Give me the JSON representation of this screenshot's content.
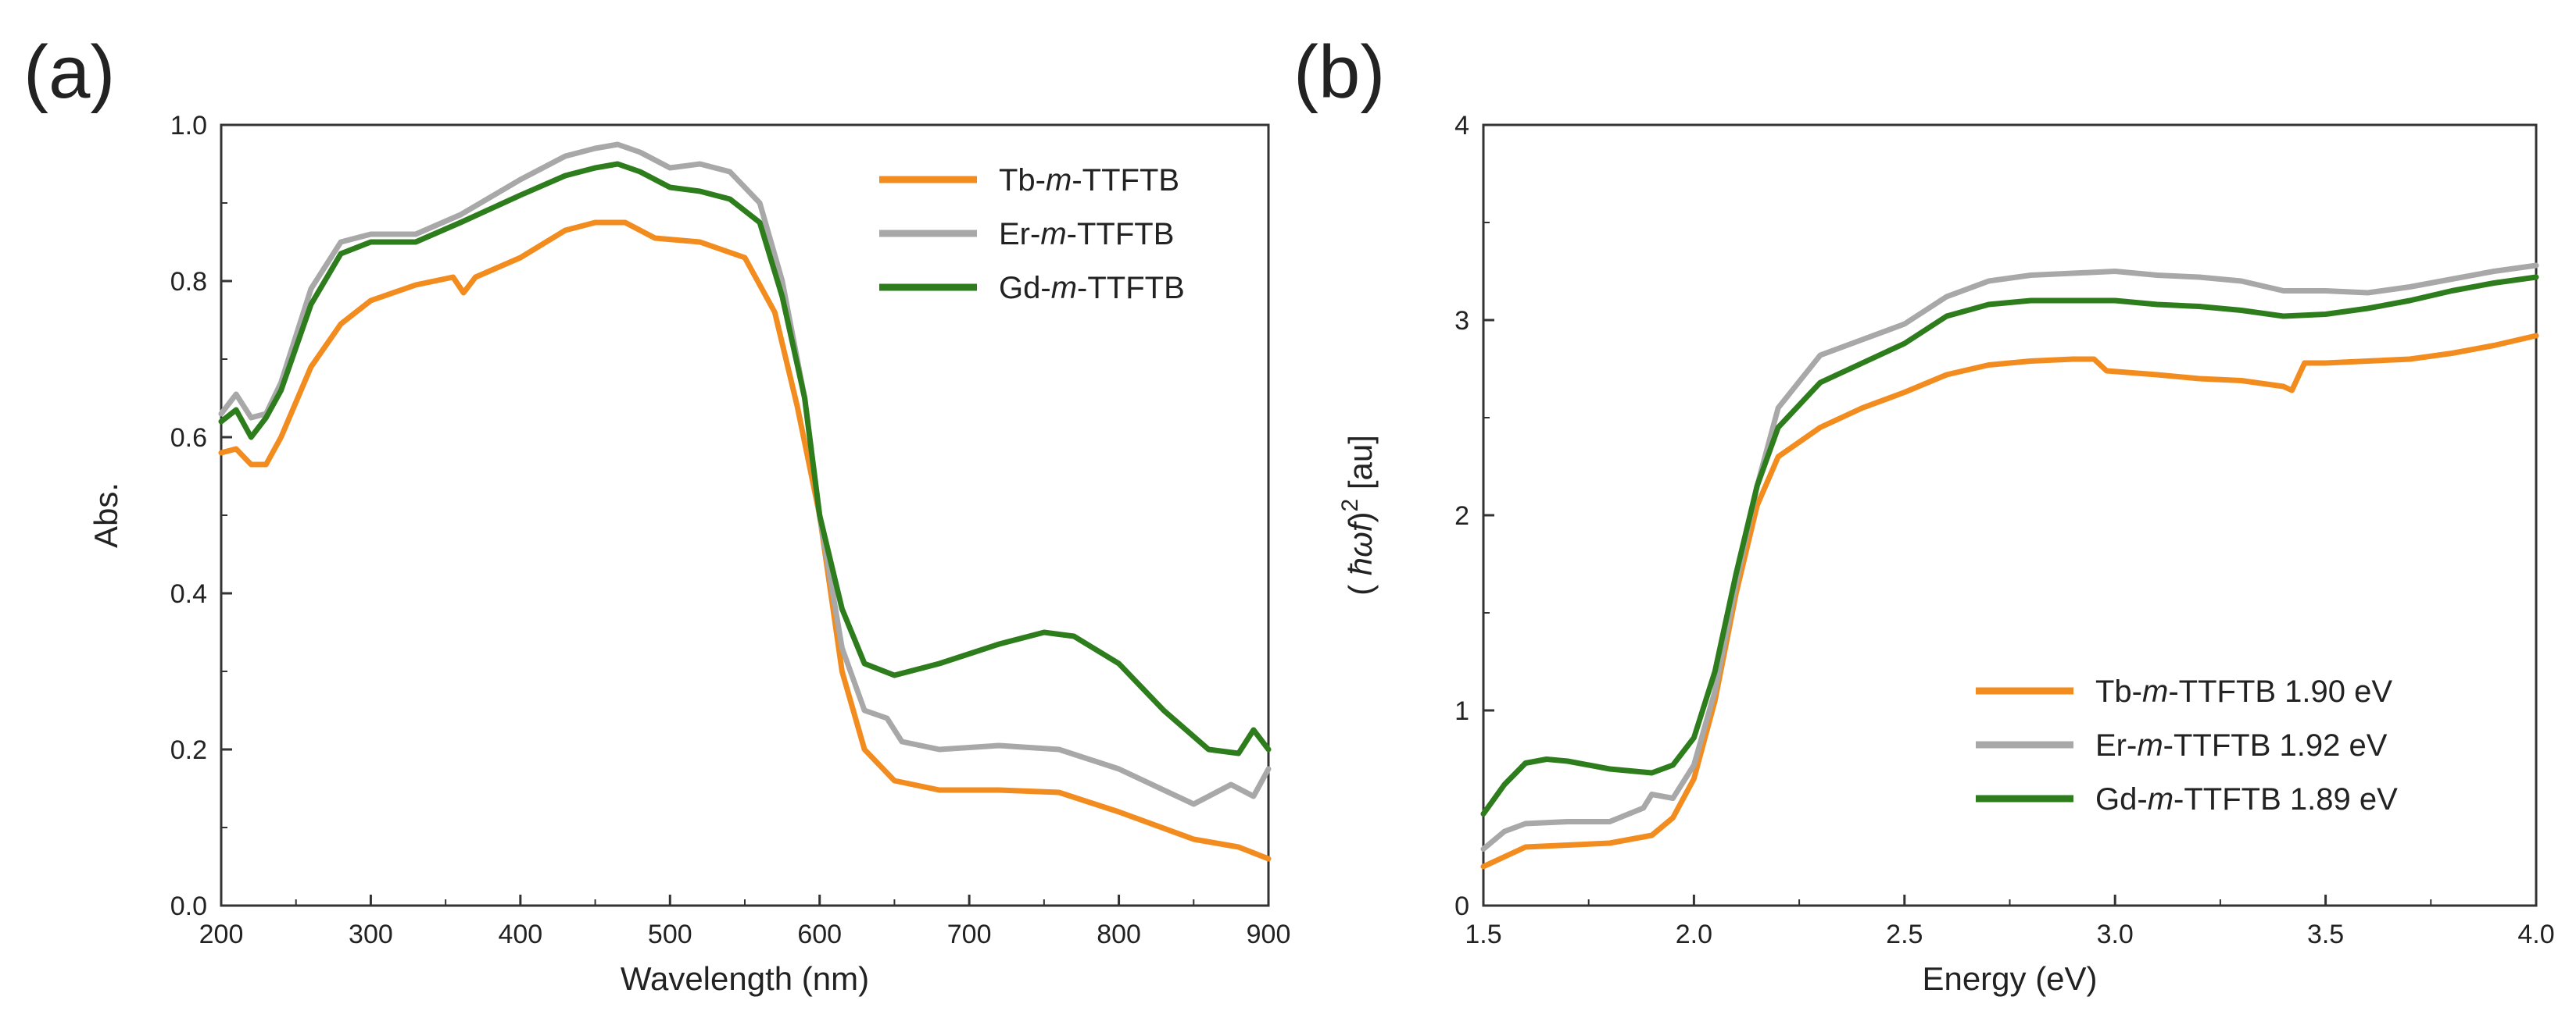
{
  "figure": {
    "colors": {
      "Tb": "#f28c1e",
      "Er": "#a8a8a8",
      "Gd": "#2e7d1c",
      "axis": "#333333"
    }
  },
  "chart_data": [
    {
      "panel_label": "(a)",
      "type": "line",
      "xlabel": "Wavelength (nm)",
      "ylabel": "Abs.",
      "xlim": [
        200,
        900
      ],
      "ylim": [
        0.0,
        1.0
      ],
      "xticks": [
        200,
        300,
        400,
        500,
        600,
        700,
        800,
        900
      ],
      "xtick_labels": [
        "200",
        "300",
        "400",
        "500",
        "600",
        "700",
        "800",
        "900"
      ],
      "yticks": [
        0.0,
        0.2,
        0.4,
        0.6,
        0.8,
        1.0
      ],
      "ytick_labels": [
        "0.0",
        "0.2",
        "0.4",
        "0.6",
        "0.8",
        "1.0"
      ],
      "legend_position": "top-right",
      "series": [
        {
          "key": "Tb",
          "name_prefix": "Tb-",
          "name_italic": "m",
          "name_suffix": "-TTFTB",
          "color": "#f28c1e",
          "x": [
            200,
            210,
            220,
            230,
            240,
            260,
            280,
            300,
            330,
            355,
            362,
            370,
            400,
            430,
            450,
            470,
            490,
            520,
            550,
            570,
            585,
            600,
            615,
            630,
            650,
            680,
            720,
            760,
            800,
            850,
            880,
            900
          ],
          "y": [
            0.58,
            0.585,
            0.565,
            0.565,
            0.6,
            0.69,
            0.745,
            0.775,
            0.795,
            0.805,
            0.785,
            0.805,
            0.83,
            0.865,
            0.875,
            0.875,
            0.855,
            0.85,
            0.83,
            0.76,
            0.64,
            0.5,
            0.3,
            0.2,
            0.16,
            0.148,
            0.148,
            0.145,
            0.12,
            0.085,
            0.075,
            0.06
          ]
        },
        {
          "key": "Er",
          "name_prefix": "Er-",
          "name_italic": "m",
          "name_suffix": "-TTFTB",
          "color": "#a8a8a8",
          "x": [
            200,
            210,
            220,
            230,
            240,
            260,
            280,
            300,
            330,
            360,
            400,
            430,
            450,
            465,
            480,
            500,
            520,
            540,
            560,
            575,
            590,
            600,
            615,
            630,
            645,
            655,
            680,
            720,
            760,
            800,
            850,
            875,
            890,
            900
          ],
          "y": [
            0.63,
            0.655,
            0.625,
            0.63,
            0.67,
            0.79,
            0.85,
            0.86,
            0.86,
            0.885,
            0.93,
            0.96,
            0.97,
            0.975,
            0.965,
            0.945,
            0.95,
            0.94,
            0.9,
            0.8,
            0.65,
            0.5,
            0.33,
            0.25,
            0.24,
            0.21,
            0.2,
            0.205,
            0.2,
            0.175,
            0.13,
            0.155,
            0.14,
            0.175
          ]
        },
        {
          "key": "Gd",
          "name_prefix": "Gd-",
          "name_italic": "m",
          "name_suffix": "-TTFTB",
          "color": "#2e7d1c",
          "x": [
            200,
            210,
            220,
            230,
            240,
            260,
            280,
            300,
            330,
            360,
            400,
            430,
            450,
            465,
            480,
            500,
            520,
            540,
            560,
            575,
            590,
            600,
            615,
            630,
            650,
            680,
            720,
            750,
            770,
            800,
            830,
            860,
            880,
            890,
            900
          ],
          "y": [
            0.62,
            0.635,
            0.6,
            0.625,
            0.66,
            0.77,
            0.835,
            0.85,
            0.85,
            0.875,
            0.91,
            0.935,
            0.945,
            0.95,
            0.94,
            0.92,
            0.915,
            0.905,
            0.875,
            0.78,
            0.65,
            0.5,
            0.38,
            0.31,
            0.295,
            0.31,
            0.335,
            0.35,
            0.345,
            0.31,
            0.25,
            0.2,
            0.195,
            0.225,
            0.2
          ]
        }
      ]
    },
    {
      "panel_label": "(b)",
      "type": "line",
      "xlabel": "Energy (eV)",
      "ylabel_prefix": "( ",
      "ylabel_symbol": "ħωf",
      "ylabel_close": ")",
      "ylabel_exponent": "2",
      "ylabel_suffix": " [au]",
      "xlim": [
        1.5,
        4.0
      ],
      "ylim": [
        0,
        4
      ],
      "xticks": [
        1.5,
        2.0,
        2.5,
        3.0,
        3.5,
        4.0
      ],
      "xtick_labels": [
        "1.5",
        "2.0",
        "2.5",
        "3.0",
        "3.5",
        "4.0"
      ],
      "yticks": [
        0,
        1,
        2,
        3,
        4
      ],
      "ytick_labels": [
        "0",
        "1",
        "2",
        "3",
        "4"
      ],
      "legend_position": "bottom-right",
      "series": [
        {
          "key": "Tb",
          "name_prefix": "Tb-",
          "name_italic": "m",
          "name_suffix": "-TTFTB 1.90 eV",
          "color": "#f28c1e",
          "x": [
            1.5,
            1.55,
            1.6,
            1.7,
            1.8,
            1.9,
            1.95,
            2.0,
            2.05,
            2.1,
            2.15,
            2.2,
            2.3,
            2.4,
            2.5,
            2.6,
            2.7,
            2.8,
            2.9,
            2.95,
            2.98,
            3.1,
            3.2,
            3.3,
            3.4,
            3.42,
            3.45,
            3.5,
            3.6,
            3.7,
            3.8,
            3.9,
            4.0
          ],
          "y": [
            0.2,
            0.25,
            0.3,
            0.31,
            0.32,
            0.36,
            0.45,
            0.65,
            1.05,
            1.6,
            2.05,
            2.3,
            2.45,
            2.55,
            2.63,
            2.72,
            2.77,
            2.79,
            2.8,
            2.8,
            2.74,
            2.72,
            2.7,
            2.69,
            2.66,
            2.64,
            2.78,
            2.78,
            2.79,
            2.8,
            2.83,
            2.87,
            2.92
          ]
        },
        {
          "key": "Er",
          "name_prefix": "Er-",
          "name_italic": "m",
          "name_suffix": "-TTFTB 1.92 eV",
          "color": "#a8a8a8",
          "x": [
            1.5,
            1.55,
            1.6,
            1.7,
            1.8,
            1.88,
            1.9,
            1.95,
            2.0,
            2.05,
            2.1,
            2.15,
            2.2,
            2.3,
            2.4,
            2.5,
            2.6,
            2.7,
            2.8,
            2.9,
            3.0,
            3.1,
            3.2,
            3.3,
            3.4,
            3.5,
            3.6,
            3.7,
            3.8,
            3.9,
            4.0
          ],
          "y": [
            0.29,
            0.38,
            0.42,
            0.43,
            0.43,
            0.5,
            0.57,
            0.55,
            0.72,
            1.1,
            1.65,
            2.15,
            2.55,
            2.82,
            2.9,
            2.98,
            3.12,
            3.2,
            3.23,
            3.24,
            3.25,
            3.23,
            3.22,
            3.2,
            3.15,
            3.15,
            3.14,
            3.17,
            3.21,
            3.25,
            3.28
          ]
        },
        {
          "key": "Gd",
          "name_prefix": "Gd-",
          "name_italic": "m",
          "name_suffix": "-TTFTB 1.89 eV",
          "color": "#2e7d1c",
          "x": [
            1.5,
            1.55,
            1.6,
            1.65,
            1.7,
            1.8,
            1.9,
            1.95,
            2.0,
            2.05,
            2.1,
            2.15,
            2.2,
            2.3,
            2.4,
            2.5,
            2.6,
            2.7,
            2.8,
            2.9,
            3.0,
            3.1,
            3.2,
            3.3,
            3.4,
            3.5,
            3.6,
            3.7,
            3.8,
            3.9,
            4.0
          ],
          "y": [
            0.47,
            0.62,
            0.73,
            0.75,
            0.74,
            0.7,
            0.68,
            0.72,
            0.86,
            1.2,
            1.7,
            2.15,
            2.45,
            2.68,
            2.78,
            2.88,
            3.02,
            3.08,
            3.1,
            3.1,
            3.1,
            3.08,
            3.07,
            3.05,
            3.02,
            3.03,
            3.06,
            3.1,
            3.15,
            3.19,
            3.22
          ]
        }
      ]
    }
  ]
}
